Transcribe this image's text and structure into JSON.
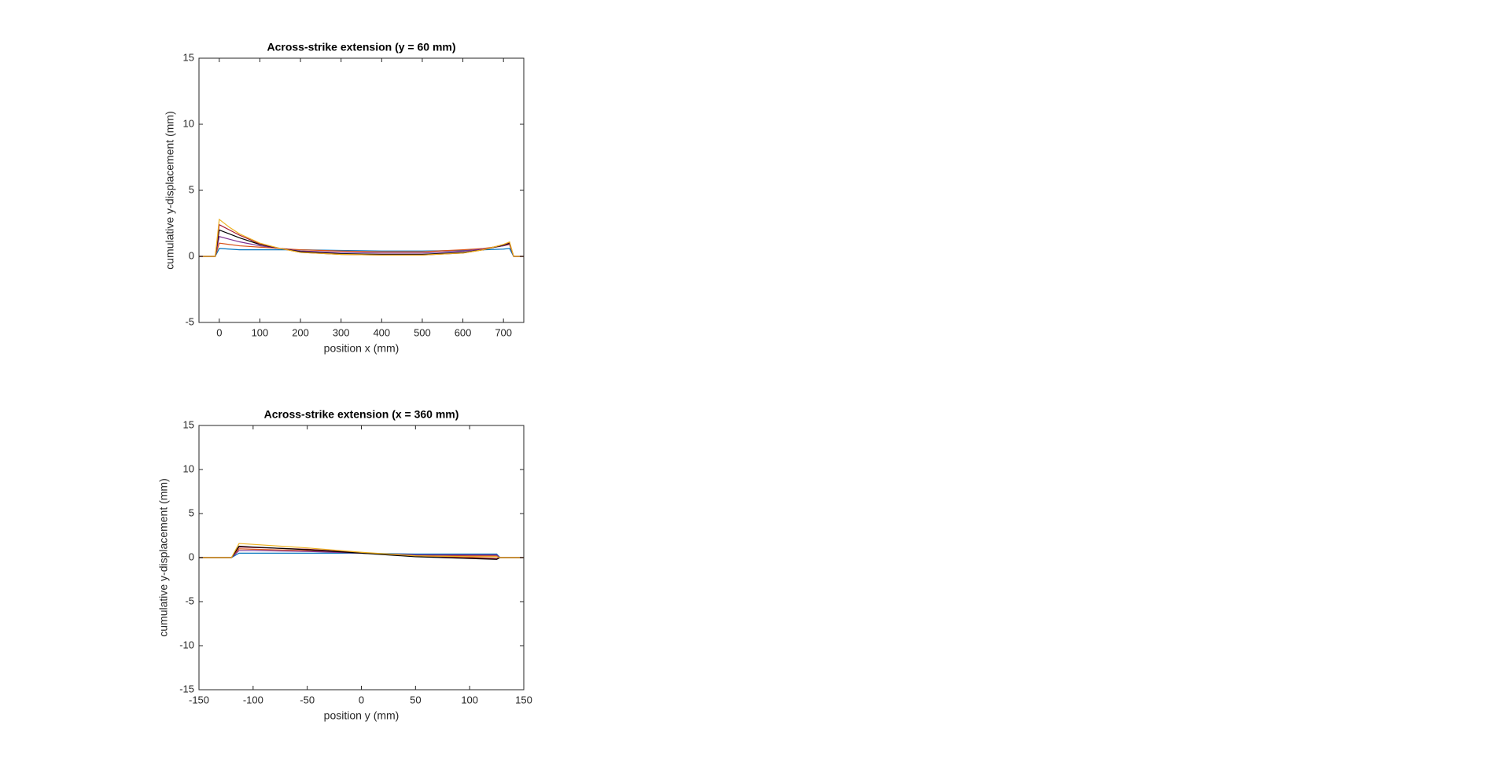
{
  "chart_data": [
    {
      "type": "line",
      "title": "Across-strike extension (y = 60 mm)",
      "x_label": "position x (mm)",
      "y_label": "cumulative y-displacement (mm)",
      "x": [
        -50,
        -10,
        0,
        25,
        50,
        100,
        150,
        200,
        300,
        400,
        500,
        600,
        650,
        700,
        715,
        725,
        750
      ],
      "series": [
        {
          "color": "#0072BD",
          "values": [
            0,
            0,
            0.6,
            0.55,
            0.5,
            0.5,
            0.5,
            0.5,
            0.45,
            0.4,
            0.4,
            0.45,
            0.5,
            0.55,
            0.6,
            0,
            0
          ]
        },
        {
          "color": "#D95319",
          "values": [
            0,
            0,
            1.0,
            0.9,
            0.8,
            0.7,
            0.6,
            0.5,
            0.4,
            0.35,
            0.35,
            0.5,
            0.6,
            0.8,
            0.9,
            0,
            0
          ]
        },
        {
          "color": "#7E2F8E",
          "values": [
            0,
            0,
            1.5,
            1.3,
            1.1,
            0.8,
            0.6,
            0.4,
            0.3,
            0.25,
            0.25,
            0.4,
            0.55,
            0.8,
            0.95,
            0,
            0
          ]
        },
        {
          "color": "#000000",
          "values": [
            0,
            0,
            2.0,
            1.7,
            1.4,
            0.9,
            0.6,
            0.35,
            0.2,
            0.15,
            0.15,
            0.3,
            0.5,
            0.85,
            1.0,
            0,
            0
          ]
        },
        {
          "color": "#A2142F",
          "values": [
            0,
            0,
            2.4,
            2.0,
            1.6,
            0.95,
            0.6,
            0.3,
            0.15,
            0.1,
            0.1,
            0.25,
            0.5,
            0.9,
            1.05,
            0,
            0
          ]
        },
        {
          "color": "#EDB120",
          "values": [
            0,
            0,
            2.8,
            2.2,
            1.7,
            1.0,
            0.6,
            0.3,
            0.15,
            0.1,
            0.1,
            0.25,
            0.5,
            0.9,
            1.1,
            0,
            0
          ]
        }
      ],
      "xlim": [
        -50,
        750
      ],
      "xticks": [
        0,
        100,
        200,
        300,
        400,
        500,
        600,
        700
      ],
      "ylim": [
        -5,
        15
      ],
      "yticks": [
        -5,
        0,
        5,
        10,
        15
      ]
    },
    {
      "type": "line",
      "title": "Across-strike extension (x = 360 mm)",
      "x_label": "position y (mm)",
      "y_label": "cumulative y-displacement (mm)",
      "x": [
        -150,
        -120,
        -113,
        -100,
        -50,
        0,
        50,
        100,
        125,
        128,
        150
      ],
      "series": [
        {
          "color": "#0072BD",
          "values": [
            0,
            0,
            0.5,
            0.5,
            0.5,
            0.5,
            0.4,
            0.4,
            0.4,
            0,
            0
          ]
        },
        {
          "color": "#D95319",
          "values": [
            0,
            0,
            1.0,
            0.95,
            0.8,
            0.5,
            0.3,
            0.2,
            0.2,
            0,
            0
          ]
        },
        {
          "color": "#7E2F8E",
          "values": [
            0,
            0,
            0.8,
            0.8,
            0.7,
            0.5,
            0.3,
            0.3,
            0.3,
            0,
            0
          ]
        },
        {
          "color": "#A2142F",
          "values": [
            0,
            0,
            1.2,
            1.15,
            0.95,
            0.55,
            0.2,
            0.0,
            -0.1,
            0,
            0
          ]
        },
        {
          "color": "#000000",
          "values": [
            0,
            0,
            1.3,
            1.2,
            0.9,
            0.5,
            0.1,
            -0.1,
            -0.2,
            0,
            0
          ]
        },
        {
          "color": "#EDB120",
          "values": [
            0,
            0,
            1.6,
            1.5,
            1.1,
            0.6,
            0.2,
            0.1,
            0.1,
            0,
            0
          ]
        }
      ],
      "xlim": [
        -150,
        150
      ],
      "xticks": [
        -150,
        -100,
        -50,
        0,
        50,
        100,
        150
      ],
      "ylim": [
        -15,
        15
      ],
      "yticks": [
        -15,
        -10,
        -5,
        0,
        5,
        10,
        15
      ]
    }
  ]
}
